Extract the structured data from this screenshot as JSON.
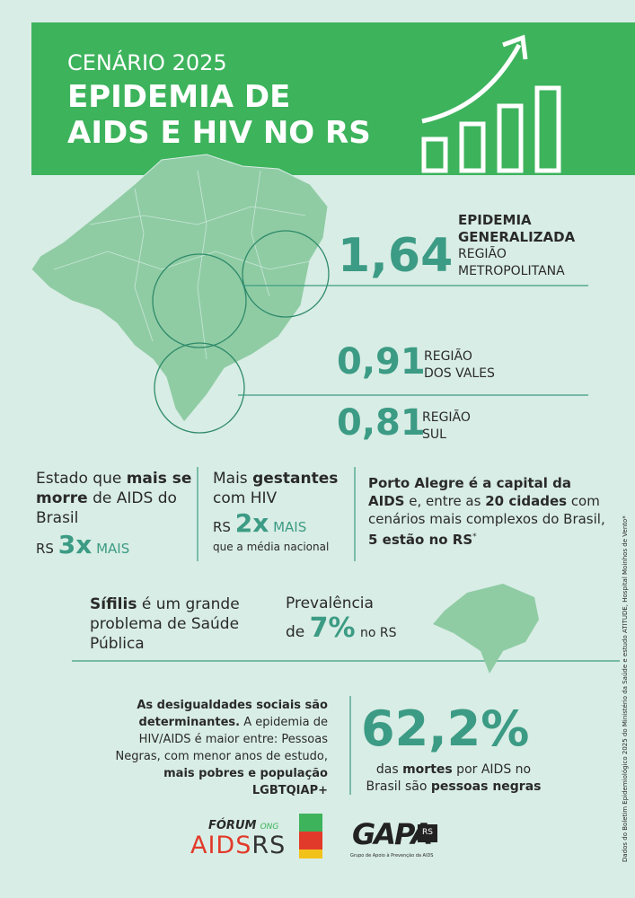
{
  "header": {
    "kicker": "CENÁRIO 2025",
    "title_line1": "EPIDEMIA DE",
    "title_line2": "AIDS E HIV NO RS"
  },
  "regions": [
    {
      "value": "1,64",
      "label_bold": [
        "EPIDEMIA",
        "GENERALIZADA"
      ],
      "label": [
        "REGIÃO",
        "METROPOLITANA"
      ]
    },
    {
      "value": "0,91",
      "label": [
        "REGIÃO",
        "DOS VALES"
      ]
    },
    {
      "value": "0,81",
      "label": [
        "REGIÃO",
        "SUL"
      ]
    }
  ],
  "facts": [
    {
      "runs": [
        "Estado que ",
        "mais se morre",
        " de AIDS do Brasil"
      ],
      "prefix": "RS",
      "multiplier": "3x",
      "suffix": "MAIS"
    },
    {
      "runs": [
        "Mais ",
        "gestantes",
        " com HIV"
      ],
      "prefix": "RS",
      "multiplier": "2x",
      "suffix": "MAIS",
      "note": "que a média nacional"
    },
    {
      "runs": [
        "Porto Alegre é a capital da AIDS",
        " e, entre as ",
        "20 cidades",
        " com cenários mais complexos do Brasil, ",
        "5 estão no RS",
        "*"
      ]
    }
  ],
  "syphilis": {
    "runs": [
      "Sífilis",
      " é um grande problema de Saúde Pública"
    ]
  },
  "prevalence": {
    "line1": "Prevalência",
    "de": "de",
    "value": "7%",
    "place": "no RS"
  },
  "inequality": {
    "runs": [
      "As desigualdades sociais são determinantes.",
      " A epidemia de HIV/AIDS é maior entre: Pessoas Negras, com menor anos de estudo, ",
      "mais pobres e população LGBTQIAP+"
    ]
  },
  "deaths": {
    "value": "62,2%",
    "runs": [
      "das ",
      "mortes",
      " por AIDS no Brasil são ",
      "pessoas negras"
    ]
  },
  "logos": {
    "forum": "FÓRUM",
    "ong": "ONG",
    "aids": "AIDS",
    "rs": "RS",
    "gapa": "GAPA",
    "gapa_rs": "RS",
    "gapa_sub": "Grupo de Apoio à Prevenção da AIDS"
  },
  "source": "Dados do Boletim Epidemiológico 2025 do Ministério da Saúde e estudo ATITUDE, Hospital Moinhos de Vento*"
}
